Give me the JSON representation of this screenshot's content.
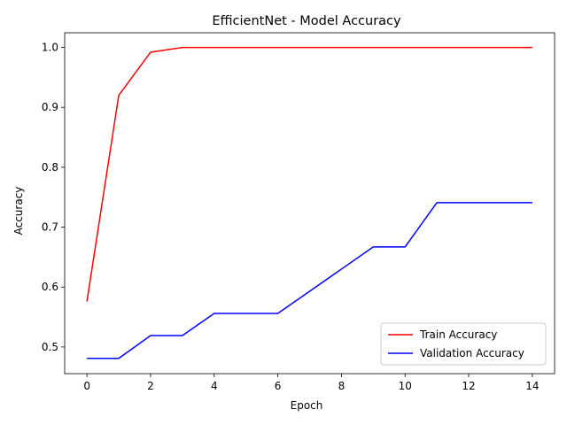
{
  "chart_data": {
    "type": "line",
    "title": "EfficientNet - Model Accuracy",
    "xlabel": "Epoch",
    "ylabel": "Accuracy",
    "xlim": [
      -0.7,
      14.7
    ],
    "ylim": [
      0.4555,
      1.0245
    ],
    "xticks": [
      0,
      2,
      4,
      6,
      8,
      10,
      12,
      14
    ],
    "yticks": [
      0.5,
      0.6,
      0.7,
      0.8,
      0.9,
      1.0
    ],
    "grid": false,
    "legend_position": "lower-right",
    "x": [
      0,
      1,
      2,
      3,
      4,
      5,
      6,
      7,
      8,
      9,
      10,
      11,
      12,
      13,
      14
    ],
    "series": [
      {
        "name": "Train Accuracy",
        "color": "#ff0000",
        "values": [
          0.576,
          0.92,
          0.992,
          1.0,
          1.0,
          1.0,
          1.0,
          1.0,
          1.0,
          1.0,
          1.0,
          1.0,
          1.0,
          1.0,
          1.0
        ]
      },
      {
        "name": "Validation Accuracy",
        "color": "#0000ff",
        "values": [
          0.481,
          0.481,
          0.519,
          0.519,
          0.556,
          0.556,
          0.556,
          0.593,
          0.63,
          0.667,
          0.667,
          0.741,
          0.741,
          0.741,
          0.741
        ]
      }
    ]
  }
}
